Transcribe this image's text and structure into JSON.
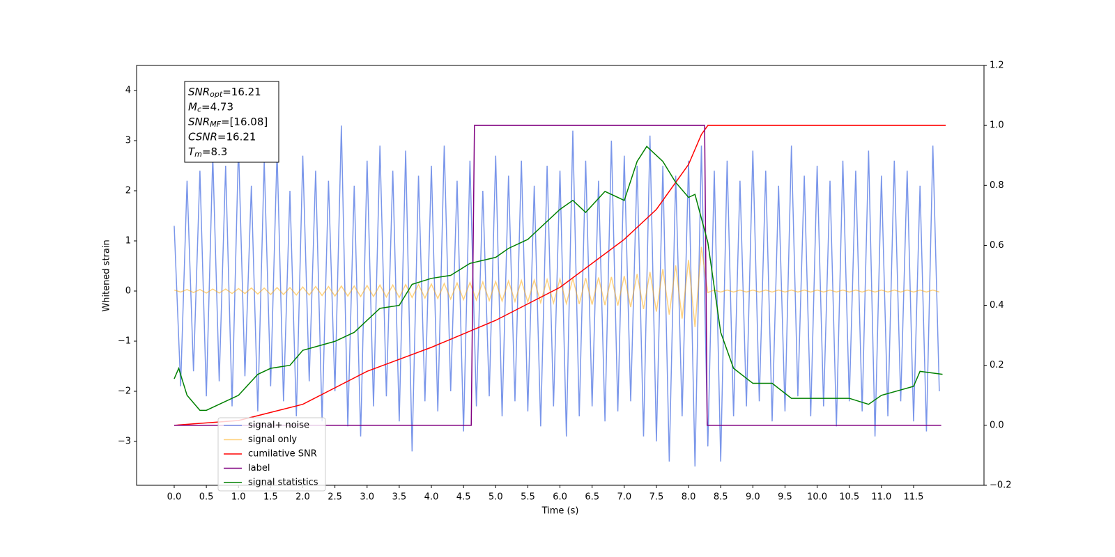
{
  "chart_data": {
    "type": "line",
    "xlabel": "Time (s)",
    "ylabel": "Whitened strain",
    "xlim": [
      -0.585,
      12.595
    ],
    "ylim": [
      -3.875,
      4.5
    ],
    "y2lim": [
      -0.2,
      1.2
    ],
    "xticks": [
      {
        "value": 0,
        "label": "0.0"
      },
      0.5,
      {
        "value": 1,
        "label": "1.0"
      },
      1.5,
      {
        "value": 2,
        "label": "2.0"
      },
      2.5,
      {
        "value": 3,
        "label": "3.0"
      },
      3.5,
      {
        "value": 4,
        "label": "4.0"
      },
      4.5,
      {
        "value": 5,
        "label": "5.0"
      },
      5.5,
      {
        "value": 6,
        "label": "6.0"
      },
      6.5,
      {
        "value": 7,
        "label": "7.0"
      },
      7.5,
      {
        "value": 8,
        "label": "8.0"
      },
      8.5,
      {
        "value": 9,
        "label": "9.0"
      },
      9.5,
      {
        "value": 10,
        "label": "10.0"
      },
      10.5,
      {
        "value": 11,
        "label": "11.0"
      },
      11.5
    ],
    "yticks": [
      {
        "value": -3,
        "label": "−3"
      },
      {
        "value": -2,
        "label": "−2"
      },
      {
        "value": -1,
        "label": "−1"
      },
      0,
      1,
      2,
      3,
      4
    ],
    "y2ticks": [
      {
        "value": -0.2,
        "label": "−0.2"
      },
      {
        "value": 0,
        "label": "0.0"
      },
      0.2,
      0.4,
      0.6,
      0.8,
      {
        "value": 1,
        "label": "1.0"
      },
      1.2
    ],
    "legend": "lower left",
    "annotation": [
      {
        "symbol": "SNR",
        "sub": "opt",
        "text": "=16.21"
      },
      {
        "symbol": "M",
        "sub": "c",
        "text": "=4.73"
      },
      {
        "symbol": "SNR",
        "sub": "MF",
        "text": "=[16.08]"
      },
      {
        "symbol": "CSNR",
        "sub": null,
        "text": "=16.21"
      },
      {
        "symbol": "T",
        "sub": "m",
        "text": "=8.3"
      }
    ],
    "x": [
      0.0,
      0.1,
      0.2,
      0.3,
      0.4,
      0.5,
      0.6,
      0.7,
      0.8,
      0.9,
      1.0,
      1.1,
      1.2,
      1.3,
      1.4,
      1.5,
      1.6,
      1.7,
      1.8,
      1.9,
      2.0,
      2.1,
      2.2,
      2.3,
      2.4,
      2.5,
      2.6,
      2.7,
      2.8,
      2.9,
      3.0,
      3.1,
      3.2,
      3.3,
      3.4,
      3.5,
      3.6,
      3.7,
      3.8,
      3.9,
      4.0,
      4.1,
      4.2,
      4.3,
      4.4,
      4.5,
      4.6,
      4.7,
      4.8,
      4.9,
      5.0,
      5.1,
      5.2,
      5.3,
      5.4,
      5.5,
      5.6,
      5.7,
      5.8,
      5.9,
      6.0,
      6.1,
      6.2,
      6.3,
      6.4,
      6.5,
      6.6,
      6.7,
      6.8,
      6.9,
      7.0,
      7.1,
      7.2,
      7.3,
      7.4,
      7.5,
      7.6,
      7.7,
      7.8,
      7.9,
      8.0,
      8.1,
      8.2,
      8.3,
      8.4,
      8.5,
      8.6,
      8.7,
      8.8,
      8.9,
      9.0,
      9.1,
      9.2,
      9.3,
      9.4,
      9.5,
      9.6,
      9.7,
      9.8,
      9.9,
      10.0,
      10.1,
      10.2,
      10.3,
      10.4,
      10.5,
      10.6,
      10.7,
      10.8,
      10.9,
      11.0,
      11.1,
      11.2,
      11.3,
      11.4,
      11.5,
      11.6,
      11.7,
      11.8,
      11.9
    ],
    "series": [
      {
        "name": "signal+ noise",
        "color": "#4169e1",
        "axis": "y",
        "values": [
          1.3,
          -1.9,
          2.2,
          -1.6,
          2.4,
          -2.1,
          2.7,
          -1.8,
          2.5,
          -2.3,
          2.9,
          -1.7,
          2.1,
          -2.4,
          2.6,
          -1.9,
          2.8,
          -2.2,
          2.0,
          -2.5,
          2.7,
          -1.8,
          2.4,
          -2.6,
          2.2,
          -2.0,
          3.3,
          -2.7,
          2.1,
          -2.9,
          2.6,
          -2.3,
          2.9,
          -2.1,
          2.4,
          -2.6,
          2.8,
          -3.2,
          2.3,
          -2.2,
          2.5,
          -2.4,
          2.9,
          -2.0,
          2.2,
          -2.8,
          2.6,
          -2.3,
          2.0,
          -2.1,
          2.7,
          -2.5,
          2.3,
          -2.2,
          2.6,
          -2.4,
          2.1,
          -2.7,
          2.5,
          -2.3,
          2.4,
          -2.9,
          3.2,
          -2.5,
          2.6,
          -2.3,
          2.2,
          -2.6,
          3.0,
          -2.4,
          2.7,
          -2.2,
          2.5,
          -2.9,
          3.1,
          -3.0,
          2.5,
          -3.4,
          2.3,
          -2.5,
          2.6,
          -3.5,
          2.9,
          -3.1,
          2.4,
          -3.4,
          2.6,
          -2.5,
          2.2,
          -2.3,
          2.8,
          -2.2,
          2.4,
          -2.6,
          2.1,
          -2.4,
          2.9,
          -2.1,
          2.3,
          -2.5,
          2.5,
          -2.3,
          2.2,
          -2.7,
          2.6,
          -2.2,
          2.4,
          -2.4,
          2.8,
          -2.9,
          2.3,
          -2.5,
          2.6,
          -2.2,
          2.4,
          -2.6,
          2.1,
          -2.8,
          2.9,
          -2.0
        ]
      },
      {
        "name": "signal only",
        "color": "#ffa500",
        "axis": "y",
        "values": [
          0.02,
          -0.02,
          0.03,
          -0.03,
          0.03,
          -0.04,
          0.04,
          -0.04,
          0.04,
          -0.05,
          0.05,
          -0.05,
          0.06,
          -0.06,
          0.06,
          -0.07,
          0.07,
          -0.07,
          0.07,
          -0.08,
          0.08,
          -0.08,
          0.09,
          -0.09,
          0.09,
          -0.1,
          0.1,
          -0.1,
          0.1,
          -0.11,
          0.11,
          -0.11,
          0.12,
          -0.12,
          0.12,
          -0.13,
          0.13,
          -0.13,
          0.13,
          -0.14,
          0.14,
          -0.15,
          0.15,
          -0.16,
          0.16,
          -0.17,
          0.17,
          -0.18,
          0.18,
          -0.19,
          0.19,
          -0.2,
          0.2,
          -0.21,
          0.21,
          -0.22,
          0.22,
          -0.23,
          0.23,
          -0.24,
          0.24,
          -0.25,
          0.25,
          -0.26,
          0.26,
          -0.27,
          0.27,
          -0.28,
          0.28,
          -0.29,
          0.3,
          -0.32,
          0.34,
          -0.36,
          0.38,
          -0.41,
          0.44,
          -0.47,
          0.51,
          -0.55,
          0.62,
          -0.72,
          0.88,
          -0.03,
          0.02,
          -0.02,
          0.02,
          -0.02,
          0.02,
          -0.02,
          0.02,
          -0.02,
          0.02,
          -0.02,
          0.02,
          -0.02,
          0.02,
          -0.02,
          0.02,
          -0.02,
          0.02,
          -0.02,
          0.02,
          -0.02,
          0.02,
          -0.02,
          0.02,
          -0.02,
          0.02,
          -0.02,
          0.02,
          -0.02,
          0.02,
          -0.02,
          0.02,
          -0.02,
          0.02,
          -0.02,
          0.02,
          -0.02
        ]
      },
      {
        "name": "cumilative SNR",
        "color": "#ff0000",
        "axis": "y2",
        "x": [
          0,
          1,
          2,
          3,
          4,
          5,
          6,
          7,
          7.5,
          8,
          8.2,
          8.3,
          12.0
        ],
        "values": [
          0,
          0.016,
          0.07,
          0.18,
          0.26,
          0.35,
          0.46,
          0.62,
          0.72,
          0.87,
          0.97,
          1.0,
          1.0
        ]
      },
      {
        "name": "label",
        "color": "#800080",
        "axis": "y2",
        "x": [
          0,
          4.62,
          4.67,
          8.25,
          8.29,
          11.93
        ],
        "values": [
          0,
          0,
          1,
          1,
          0,
          0
        ]
      },
      {
        "name": "signal statistics",
        "color": "#008000",
        "axis": "y2",
        "x": [
          0.0,
          0.07,
          0.2,
          0.4,
          0.5,
          0.7,
          1.0,
          1.3,
          1.5,
          1.8,
          2.0,
          2.5,
          2.8,
          3.0,
          3.2,
          3.5,
          3.7,
          4.0,
          4.3,
          4.6,
          5.0,
          5.2,
          5.5,
          5.8,
          6.0,
          6.2,
          6.4,
          6.7,
          7.0,
          7.2,
          7.35,
          7.6,
          7.8,
          8.0,
          8.1,
          8.3,
          8.5,
          8.7,
          9.0,
          9.3,
          9.6,
          10.0,
          10.5,
          10.8,
          11.0,
          11.5,
          11.6,
          11.95
        ],
        "values": [
          0.155,
          0.19,
          0.1,
          0.05,
          0.05,
          0.07,
          0.1,
          0.17,
          0.19,
          0.2,
          0.25,
          0.28,
          0.31,
          0.35,
          0.39,
          0.4,
          0.47,
          0.49,
          0.5,
          0.54,
          0.56,
          0.59,
          0.62,
          0.68,
          0.72,
          0.75,
          0.71,
          0.78,
          0.75,
          0.88,
          0.93,
          0.88,
          0.81,
          0.76,
          0.77,
          0.61,
          0.31,
          0.19,
          0.14,
          0.14,
          0.09,
          0.09,
          0.09,
          0.07,
          0.1,
          0.13,
          0.18,
          0.17
        ]
      }
    ]
  }
}
